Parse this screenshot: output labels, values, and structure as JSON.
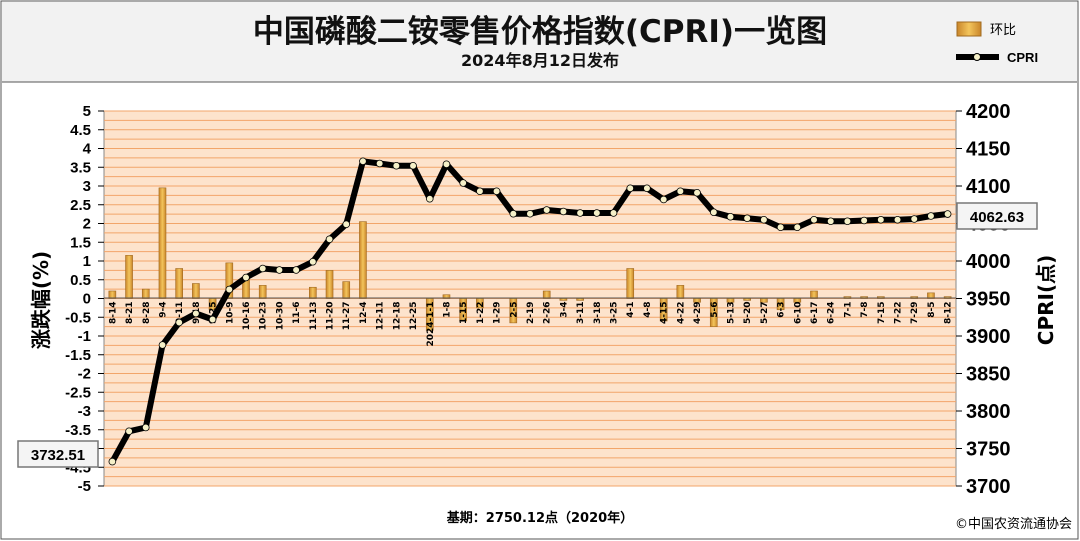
{
  "header": {
    "title": "中国磷酸二铵零售价格指数(CPRI)一览图",
    "subtitle": "2024年8月12日发布"
  },
  "footer": {
    "base_note": "基期：2750.12点（2020年）",
    "copyright": "©中国农资流通协会"
  },
  "colors": {
    "plot_bg": "#fde3cc",
    "grid": "#f2a56a",
    "bar": "#e0a53a",
    "line": "#000000",
    "header_bg": "#f2f2f2"
  },
  "chart_data": {
    "type": "bar+line",
    "ylabel_left": "涨跌幅(%)",
    "ylabel_right": "CPRI(点)",
    "ylim_left": [
      -5,
      5
    ],
    "ylim_right": [
      3700,
      4200
    ],
    "yticks_left": [
      "5",
      "4.5",
      "4",
      "3.5",
      "3",
      "2.5",
      "2",
      "1.5",
      "1",
      "0.5",
      "0",
      "-0.5",
      "-1",
      "-1.5",
      "-2",
      "-2.5",
      "-3",
      "-3.5",
      "-4",
      "-4.5",
      "-5"
    ],
    "yticks_right": [
      "4200",
      "4150",
      "4100",
      "4050",
      "4000",
      "3950",
      "3900",
      "3850",
      "3800",
      "3750",
      "3700"
    ],
    "legend": {
      "bar_label": "环比",
      "line_label": "CPRI"
    },
    "callouts": {
      "first": "3732.51",
      "last": "4062.63"
    },
    "categories": [
      "8-14",
      "8-21",
      "8-28",
      "9-4",
      "9-11",
      "9-18",
      "9-25",
      "10-9",
      "10-16",
      "10-23",
      "10-30",
      "11-6",
      "11-13",
      "11-20",
      "11-27",
      "12-4",
      "12-11",
      "12-18",
      "12-25",
      "2024-1-1",
      "1-8",
      "1-15",
      "1-22",
      "1-29",
      "2-5",
      "2-19",
      "2-26",
      "3-4",
      "3-11",
      "3-18",
      "3-25",
      "4-1",
      "4-8",
      "4-15",
      "4-22",
      "4-29",
      "5-6",
      "5-13",
      "5-20",
      "5-27",
      "6-3",
      "6-10",
      "6-17",
      "6-24",
      "7-1",
      "7-8",
      "7-15",
      "7-22",
      "7-29",
      "8-5",
      "8-12"
    ],
    "series": [
      {
        "name": "环比",
        "type": "bar",
        "values": [
          0.2,
          1.15,
          0.25,
          2.95,
          0.8,
          0.4,
          -0.3,
          0.95,
          0.55,
          0.35,
          0.0,
          0.0,
          0.3,
          0.75,
          0.45,
          2.05,
          0.0,
          0.0,
          0.0,
          -0.85,
          0.1,
          -0.6,
          -0.25,
          0.0,
          -0.65,
          0.0,
          0.2,
          -0.05,
          -0.05,
          0.0,
          0.0,
          0.8,
          0.0,
          -0.6,
          0.35,
          -0.1,
          -0.75,
          -0.1,
          -0.05,
          -0.1,
          -0.3,
          -0.1,
          0.2,
          0.0,
          0.05,
          0.05,
          0.05,
          0.0,
          0.05,
          0.15,
          0.05
        ]
      },
      {
        "name": "CPRI",
        "type": "line",
        "values": [
          3732.51,
          3773,
          3778,
          3888,
          3918,
          3930,
          3922,
          3962,
          3978,
          3990,
          3988,
          3988,
          3999,
          4029,
          4049,
          4133,
          4130,
          4127,
          4127,
          4083,
          4129,
          4104,
          4093,
          4093,
          4063,
          4063,
          4068,
          4066,
          4064,
          4064,
          4064,
          4097,
          4097,
          4082,
          4093,
          4091,
          4065,
          4059,
          4057,
          4055,
          4045,
          4045,
          4055,
          4053,
          4053,
          4054,
          4055,
          4055,
          4056,
          4060,
          4062.63
        ]
      }
    ]
  }
}
